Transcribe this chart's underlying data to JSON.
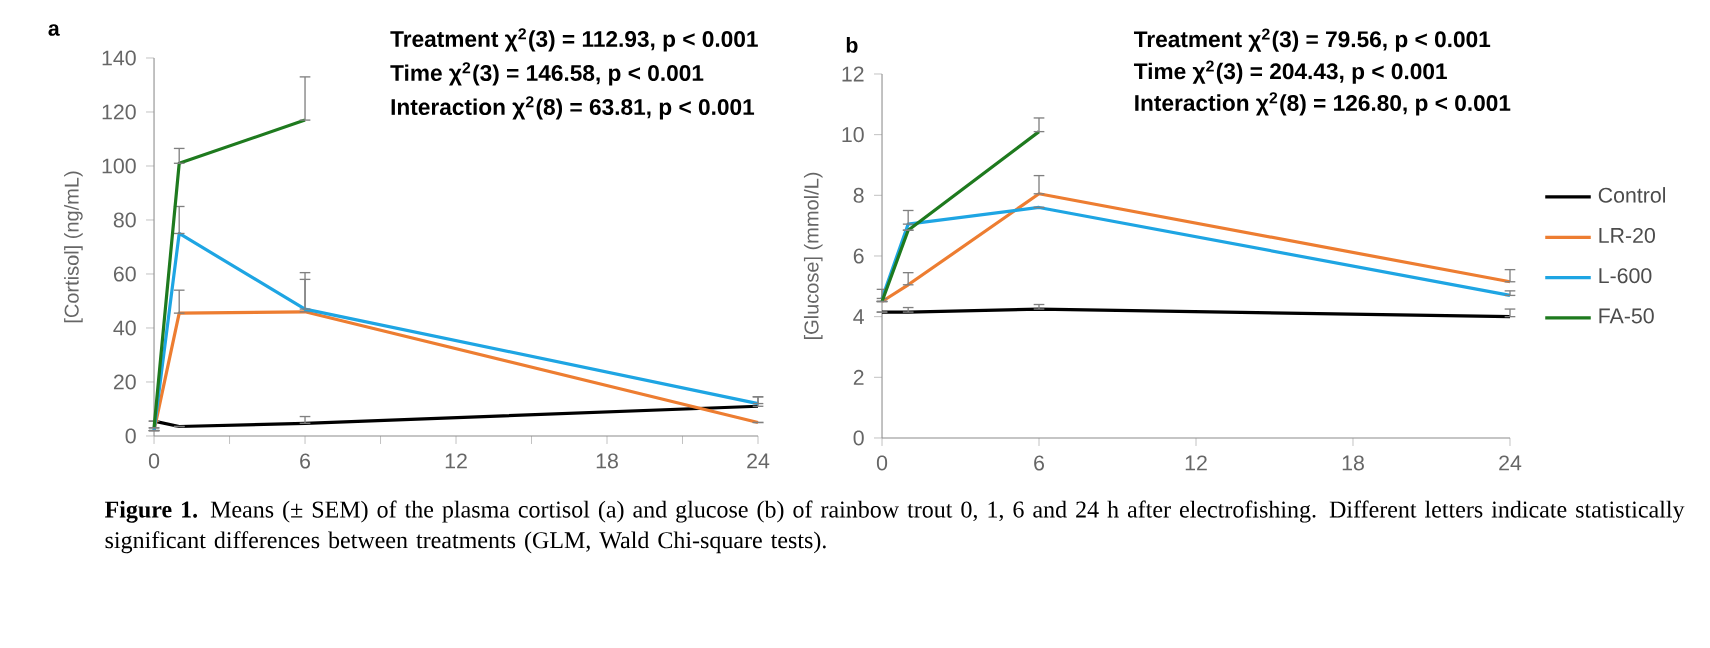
{
  "chart_data": [
    {
      "type": "line",
      "title": "a",
      "ylabel": "[Cortisol] (ng/mL)",
      "x": [
        0,
        1,
        6,
        24
      ],
      "xlim": [
        0,
        24
      ],
      "ylim": [
        0,
        140
      ],
      "xticks": [
        0,
        {
          "value": 3,
          "label": null
        },
        6,
        {
          "value": 9,
          "label": null
        },
        12,
        {
          "value": 15,
          "label": null
        },
        18,
        {
          "value": 21,
          "label": null
        },
        24
      ],
      "yticks": [
        0,
        20,
        40,
        60,
        80,
        100,
        120,
        140
      ],
      "grid": false,
      "marker": "none",
      "line_style": "solid",
      "series": [
        {
          "color": "#000000",
          "values": [
            5.5,
            3.5,
            4.7,
            11
          ],
          "errors": [
            null,
            null,
            [
              4.7,
              7.2
            ],
            [
              11,
              14.5
            ]
          ]
        },
        {
          "color": "#ed7d31",
          "values": [
            2,
            45.5,
            46,
            5
          ],
          "errors": [
            null,
            [
              45.5,
              54
            ],
            [
              46,
              58
            ],
            null
          ]
        },
        {
          "color": "#1ea5e3",
          "values": [
            2,
            75,
            47,
            12
          ],
          "errors": [
            null,
            [
              75,
              85
            ],
            [
              47,
              60.5
            ],
            [
              12,
              14.5
            ]
          ]
        },
        {
          "color": "#1e7a1e",
          "values": [
            3,
            101,
            117,
            null
          ],
          "errors": [
            null,
            [
              101,
              106.5
            ],
            [
              117,
              133
            ],
            null
          ]
        }
      ],
      "annotations": [
        "Treatment  χ$^{2}$(3) = 112.93, p < 0.001",
        "Time  χ$^{2}$(3) = 146.58, p < 0.001",
        "Interaction  χ$^{2}$(8) = 63.81, p < 0.001",
        "**Figure 1.** Means (± SEM) of the plasma cortisol (a) and glucose (b) of rainbow trout 0, 1, 6 and 24 h after electrofishing. Different letters indicate statistically significant differences between treatments (GLM, Wald Chi-square tests)."
      ]
    },
    {
      "type": "line",
      "title": "b",
      "ylabel": "[Glucose] (mmol/L)",
      "x": [
        0,
        1,
        6,
        24
      ],
      "xlim": [
        0,
        24
      ],
      "ylim": [
        0,
        12
      ],
      "xticks": [
        0,
        6,
        12,
        18,
        24
      ],
      "yticks": [
        0,
        2,
        4,
        6,
        8,
        10,
        12
      ],
      "grid": false,
      "marker": "none",
      "line_style": "solid",
      "legend": "right",
      "series": [
        {
          "name": "Control",
          "color": "#000000",
          "values": [
            4.15,
            4.15,
            4.25,
            4.0
          ],
          "errors": [
            null,
            [
              4.15,
              4.3
            ],
            [
              4.25,
              4.4
            ],
            [
              4.0,
              4.25
            ]
          ]
        },
        {
          "name": "LR-20",
          "color": "#ed7d31",
          "values": [
            4.5,
            5.05,
            8.05,
            5.15
          ],
          "errors": [
            null,
            [
              5.05,
              5.45
            ],
            [
              8.05,
              8.65
            ],
            [
              5.15,
              5.55
            ]
          ]
        },
        {
          "name": "L-600",
          "color": "#1ea5e3",
          "values": [
            4.6,
            7.05,
            7.6,
            4.7
          ],
          "errors": [
            [
              4.6,
              4.9
            ],
            [
              7.05,
              7.5
            ],
            null,
            [
              4.7,
              4.85
            ]
          ]
        },
        {
          "name": "FA-50",
          "color": "#1e7a1e",
          "values": [
            4.5,
            6.85,
            10.1,
            null
          ],
          "errors": [
            null,
            null,
            [
              10.1,
              10.55
            ],
            null
          ]
        }
      ],
      "annotations": [
        "Treatment χ$^{2}$(3) = 79.56, p < 0.001",
        "Time χ$^{2}$(3) = 204.43, p < 0.001",
        "Interaction χ$^{2}$(8) = 126.80, p < 0.001"
      ]
    }
  ]
}
